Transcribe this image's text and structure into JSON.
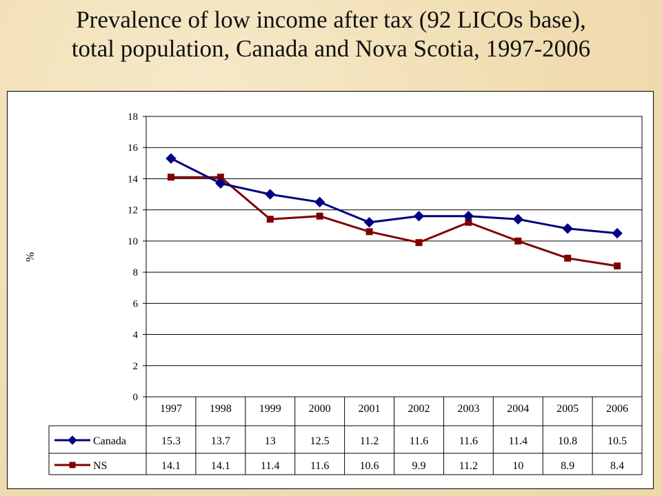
{
  "title": {
    "line1": "Prevalence of low income after tax (92 LICOs base),",
    "line2": "total population, Canada and Nova Scotia, 1997-2006"
  },
  "chart_data": {
    "type": "line",
    "categories": [
      "1997",
      "1998",
      "1999",
      "2000",
      "2001",
      "2002",
      "2003",
      "2004",
      "2005",
      "2006"
    ],
    "ylabel": "%",
    "ylim": [
      0,
      18
    ],
    "yticks": [
      0,
      2,
      4,
      6,
      8,
      10,
      12,
      14,
      16,
      18
    ],
    "grid": true,
    "legend": "data-table",
    "series": [
      {
        "name": "Canada",
        "color": "#000080",
        "marker": "diamond",
        "labels": [
          "15.3",
          "13.7",
          "13",
          "12.5",
          "11.2",
          "11.6",
          "11.6",
          "11.4",
          "10.8",
          "10.5"
        ],
        "values": [
          15.3,
          13.7,
          13,
          12.5,
          11.2,
          11.6,
          11.6,
          11.4,
          10.8,
          10.5
        ]
      },
      {
        "name": "NS",
        "color": "#800000",
        "marker": "square",
        "labels": [
          "14.1",
          "14.1",
          "11.4",
          "11.6",
          "10.6",
          "9.9",
          "11.2",
          "10",
          "8.9",
          "8.4"
        ],
        "values": [
          14.1,
          14.1,
          11.4,
          11.6,
          10.6,
          9.9,
          11.2,
          10,
          8.9,
          8.4
        ]
      }
    ]
  }
}
